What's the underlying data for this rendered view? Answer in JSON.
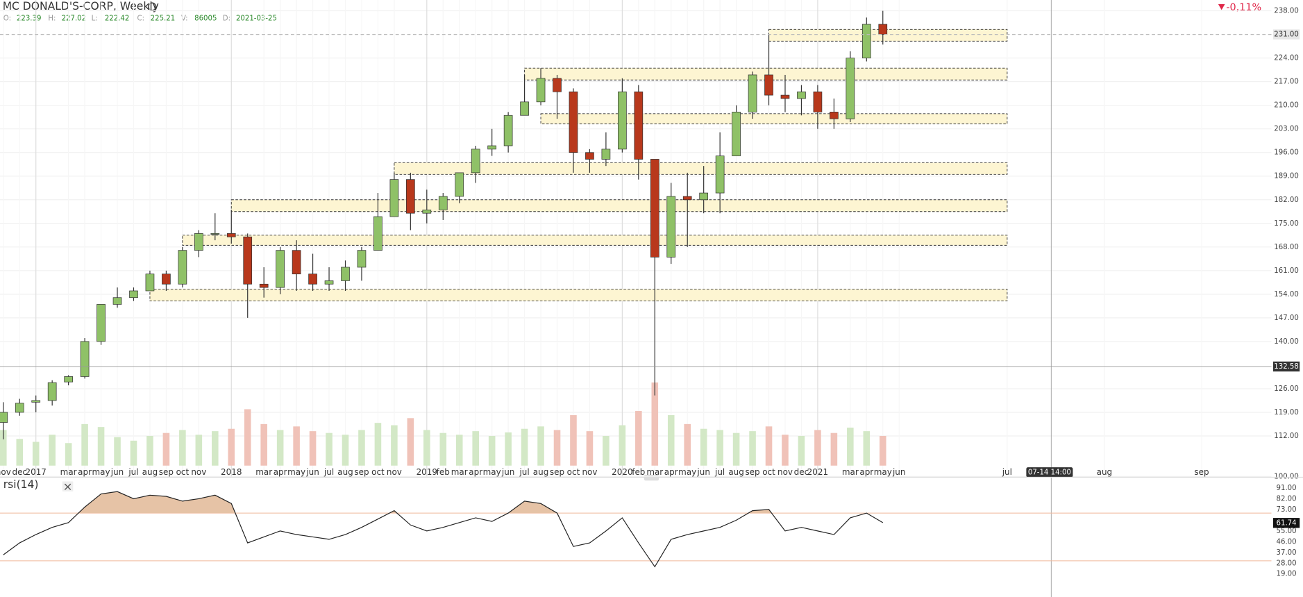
{
  "header": {
    "title": "MC DONALD'S-CORP, Weekly",
    "change": "-0,11%",
    "ohlc": [
      {
        "label": "O:",
        "value": "223.39"
      },
      {
        "label": "H:",
        "value": "227.02"
      },
      {
        "label": "L:",
        "value": "222.42"
      },
      {
        "label": "C:",
        "value": "225.21"
      },
      {
        "label": "V:",
        "value": "86005"
      },
      {
        "label": "D:",
        "value": "2021-03-25"
      }
    ]
  },
  "chart_data": {
    "type": "candlestick",
    "x": [
      "2016-11",
      "2016-12",
      "2017-01",
      "2017-02",
      "2017-03",
      "2017-04",
      "2017-05",
      "2017-06",
      "2017-07",
      "2017-08",
      "2017-09",
      "2017-10",
      "2017-11",
      "2017-12",
      "2018-01",
      "2018-02",
      "2018-03",
      "2018-04",
      "2018-05",
      "2018-06",
      "2018-07",
      "2018-08",
      "2018-09",
      "2018-10",
      "2018-11",
      "2018-12",
      "2019-01",
      "2019-02",
      "2019-03",
      "2019-04",
      "2019-05",
      "2019-06",
      "2019-07",
      "2019-08",
      "2019-09",
      "2019-10",
      "2019-11",
      "2019-12",
      "2020-01",
      "2020-02",
      "2020-03",
      "2020-04",
      "2020-05",
      "2020-06",
      "2020-07",
      "2020-08",
      "2020-09",
      "2020-10",
      "2020-11",
      "2020-12",
      "2021-01",
      "2021-02",
      "2021-03",
      "2021-04",
      "2021-05"
    ],
    "open": [
      116,
      119,
      122,
      122.5,
      128,
      129.6,
      140,
      151,
      153,
      155,
      160,
      157,
      167,
      172,
      172,
      171,
      157,
      156,
      167,
      160,
      157,
      158,
      162,
      167,
      177,
      188,
      178,
      179,
      183,
      190,
      197,
      198,
      207,
      211,
      218,
      214,
      196,
      194,
      197,
      214,
      194,
      165,
      183,
      182,
      184,
      195,
      208,
      219,
      213,
      212,
      214,
      208,
      206,
      224,
      234
    ],
    "high": [
      122,
      123,
      124,
      128.5,
      130,
      141,
      151,
      156,
      156,
      161,
      161,
      168,
      173,
      178,
      179,
      172,
      162,
      168,
      170,
      166,
      162,
      164,
      168,
      184,
      190,
      190,
      185,
      184,
      190,
      198,
      203,
      208,
      219,
      221,
      219,
      215,
      197,
      202,
      218,
      216,
      194,
      187,
      190,
      192,
      202,
      210,
      220,
      231,
      219,
      216,
      216,
      212,
      226,
      236,
      238
    ],
    "low": [
      111,
      118,
      119,
      121,
      127,
      129,
      139,
      150,
      152,
      155,
      155,
      156,
      165,
      170,
      169,
      147,
      153,
      154,
      155,
      155,
      155,
      155,
      158,
      167,
      177,
      173,
      175,
      176,
      181,
      187,
      195,
      196,
      207,
      210,
      206,
      190,
      190,
      192,
      196,
      188,
      124,
      163,
      168,
      178,
      178,
      195,
      206,
      210,
      208,
      207,
      203,
      203,
      205,
      223,
      228
    ],
    "close": [
      119,
      121.7,
      122.5,
      127.8,
      129.6,
      140,
      151,
      153,
      155,
      160,
      157,
      167,
      172,
      172,
      171,
      157,
      156,
      167,
      160,
      157,
      158,
      162,
      167,
      177,
      188,
      178,
      179,
      183,
      190,
      197,
      198,
      207,
      211,
      218,
      214,
      196,
      194,
      197,
      214,
      194,
      165,
      183,
      182,
      184,
      195,
      208,
      219,
      213,
      212,
      214,
      208,
      206,
      224,
      234,
      231
    ],
    "volume": [
      60,
      45,
      40,
      52,
      38,
      70,
      65,
      48,
      42,
      50,
      55,
      60,
      52,
      58,
      62,
      95,
      70,
      60,
      66,
      58,
      55,
      52,
      60,
      72,
      68,
      80,
      60,
      55,
      52,
      58,
      50,
      56,
      62,
      66,
      60,
      85,
      58,
      50,
      68,
      92,
      140,
      85,
      70,
      62,
      60,
      55,
      58,
      66,
      52,
      50,
      60,
      55,
      64,
      58,
      50
    ],
    "ylim": [
      100,
      238
    ],
    "yticks": [
      {
        "value": 100,
        "label": "100.00"
      },
      {
        "value": 112,
        "label": "112.00"
      },
      {
        "value": 119,
        "label": "119.00"
      },
      {
        "value": 126,
        "label": "126.00"
      },
      {
        "value": 140,
        "label": "140.00"
      },
      {
        "value": 147,
        "label": "147.00"
      },
      {
        "value": 154,
        "label": "154.00"
      },
      {
        "value": 161,
        "label": "161.00"
      },
      {
        "value": 168,
        "label": "168.00"
      },
      {
        "value": 175,
        "label": "175.00"
      },
      {
        "value": 182,
        "label": "182.00"
      },
      {
        "value": 189,
        "label": "189.00"
      },
      {
        "value": 196,
        "label": "196.00"
      },
      {
        "value": 203,
        "label": "203.00"
      },
      {
        "value": 210,
        "label": "210.00"
      },
      {
        "value": 217,
        "label": "217.00"
      },
      {
        "value": 224,
        "label": "224.00"
      },
      {
        "value": 238,
        "label": "238.00"
      }
    ],
    "xticks": [
      {
        "value": "2016-11",
        "label": "nov"
      },
      {
        "value": "2016-12",
        "label": "dec"
      },
      {
        "value": "2017-01",
        "label": "2017"
      },
      {
        "value": "2017-03",
        "label": "mar"
      },
      {
        "value": "2017-04",
        "label": "apr"
      },
      {
        "value": "2017-05",
        "label": "may"
      },
      {
        "value": "2017-06",
        "label": "jun"
      },
      {
        "value": "2017-07",
        "label": "jul"
      },
      {
        "value": "2017-08",
        "label": "aug"
      },
      {
        "value": "2017-09",
        "label": "sep"
      },
      {
        "value": "2017-10",
        "label": "oct"
      },
      {
        "value": "2017-11",
        "label": "nov"
      },
      {
        "value": "2018-01",
        "label": "2018"
      },
      {
        "value": "2018-03",
        "label": "mar"
      },
      {
        "value": "2018-04",
        "label": "apr"
      },
      {
        "value": "2018-05",
        "label": "may"
      },
      {
        "value": "2018-06",
        "label": "jun"
      },
      {
        "value": "2018-07",
        "label": "jul"
      },
      {
        "value": "2018-08",
        "label": "aug"
      },
      {
        "value": "2018-09",
        "label": "sep"
      },
      {
        "value": "2018-10",
        "label": "oct"
      },
      {
        "value": "2018-11",
        "label": "nov"
      },
      {
        "value": "2019-01",
        "label": "2019"
      },
      {
        "value": "2019-02",
        "label": "feb"
      },
      {
        "value": "2019-03",
        "label": "mar"
      },
      {
        "value": "2019-04",
        "label": "apr"
      },
      {
        "value": "2019-05",
        "label": "may"
      },
      {
        "value": "2019-06",
        "label": "jun"
      },
      {
        "value": "2019-07",
        "label": "jul"
      },
      {
        "value": "2019-08",
        "label": "aug"
      },
      {
        "value": "2019-09",
        "label": "sep"
      },
      {
        "value": "2019-10",
        "label": "oct"
      },
      {
        "value": "2019-11",
        "label": "nov"
      },
      {
        "value": "2020-01",
        "label": "2020"
      },
      {
        "value": "2020-02",
        "label": "feb"
      },
      {
        "value": "2020-03",
        "label": "mar"
      },
      {
        "value": "2020-04",
        "label": "apr"
      },
      {
        "value": "2020-05",
        "label": "may"
      },
      {
        "value": "2020-06",
        "label": "jun"
      },
      {
        "value": "2020-07",
        "label": "jul"
      },
      {
        "value": "2020-08",
        "label": "aug"
      },
      {
        "value": "2020-09",
        "label": "sep"
      },
      {
        "value": "2020-10",
        "label": "oct"
      },
      {
        "value": "2020-11",
        "label": "nov"
      },
      {
        "value": "2020-12",
        "label": "dec"
      },
      {
        "value": "2021-01",
        "label": "2021"
      },
      {
        "value": "2021-03",
        "label": "mar"
      },
      {
        "value": "2021-04",
        "label": "apr"
      },
      {
        "value": "2021-05",
        "label": "may"
      },
      {
        "value": "2021-06",
        "label": "jun"
      },
      {
        "value": "2021-07",
        "label": "jul"
      },
      {
        "value": "2021-08",
        "label": "aug"
      },
      {
        "value": "2021-09",
        "label": "sep"
      }
    ],
    "zones": [
      {
        "from": "2020-10",
        "to": "2021-07",
        "low": 229,
        "high": 232.5
      },
      {
        "from": "2019-07",
        "to": "2021-07",
        "low": 217.5,
        "high": 221
      },
      {
        "from": "2019-08",
        "to": "2021-07",
        "low": 204.5,
        "high": 207.5
      },
      {
        "from": "2018-11",
        "to": "2021-07",
        "low": 189.5,
        "high": 193
      },
      {
        "from": "2018-01",
        "to": "2021-07",
        "low": 178.5,
        "high": 182
      },
      {
        "from": "2017-10",
        "to": "2021-07",
        "low": 168.5,
        "high": 171.5
      },
      {
        "from": "2017-08",
        "to": "2021-07",
        "low": 152,
        "high": 155.5
      }
    ],
    "last_price": {
      "value": 231,
      "label": "231.00"
    },
    "crosshair": {
      "y": {
        "value": 132.58,
        "label": "132.58"
      },
      "x_label": "07-14 14:00"
    },
    "rsi": {
      "title": "rsi(14)",
      "values": [
        35,
        45,
        52,
        58,
        62,
        75,
        86,
        88,
        82,
        85,
        84,
        80,
        82,
        85,
        78,
        45,
        50,
        55,
        52,
        50,
        48,
        52,
        58,
        65,
        72,
        60,
        55,
        58,
        62,
        66,
        63,
        70,
        80,
        78,
        70,
        42,
        45,
        55,
        66,
        45,
        25,
        48,
        52,
        55,
        58,
        64,
        72,
        73,
        55,
        58,
        55,
        52,
        66,
        70,
        62
      ],
      "ylim": [
        0,
        100
      ],
      "yticks": [
        {
          "value": 19,
          "label": "19.00"
        },
        {
          "value": 28,
          "label": "28.00"
        },
        {
          "value": 37,
          "label": "37.00"
        },
        {
          "value": 46,
          "label": "46.00"
        },
        {
          "value": 55,
          "label": "55.00"
        },
        {
          "value": 73,
          "label": "73.00"
        },
        {
          "value": 82,
          "label": "82.00"
        },
        {
          "value": 91,
          "label": "91.00"
        }
      ],
      "levels": [
        30,
        70
      ],
      "last": {
        "value": 61.74,
        "label": "61.74"
      }
    }
  }
}
